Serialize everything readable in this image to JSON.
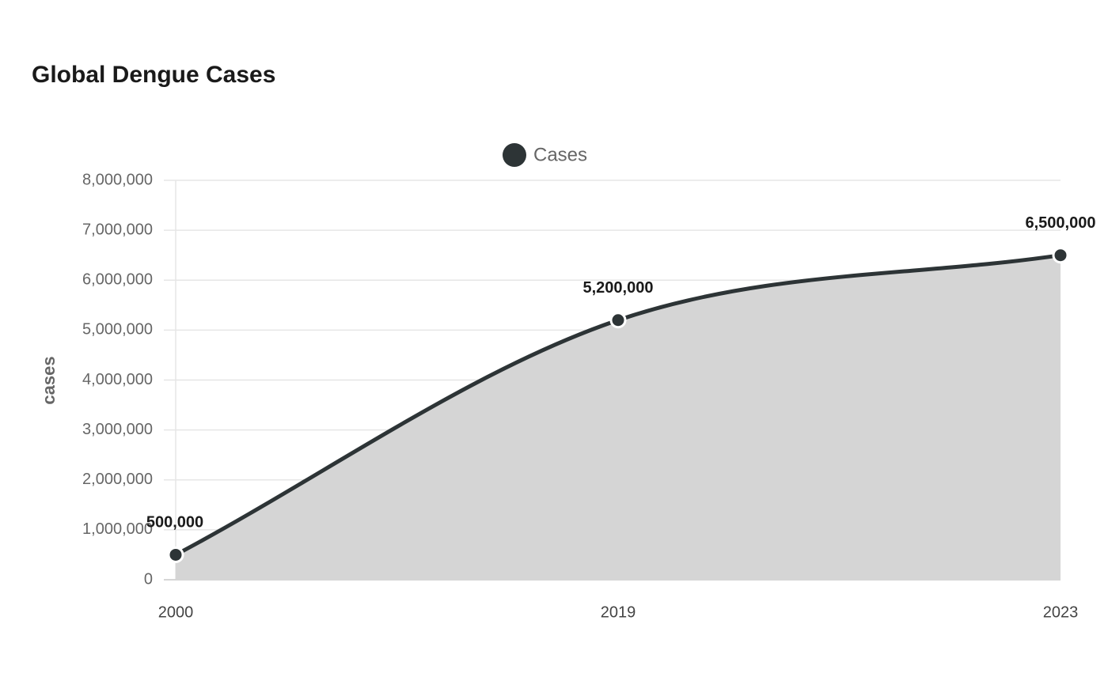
{
  "chart_data": {
    "type": "area",
    "title": "Global Dengue Cases",
    "categories": [
      "2000",
      "2019",
      "2023"
    ],
    "series": [
      {
        "name": "Cases",
        "color": "#2d3436",
        "fill": "#d5d5d5",
        "values": [
          500000,
          5200000,
          6500000
        ],
        "value_labels": [
          "500,000",
          "5,200,000",
          "6,500,000"
        ]
      }
    ],
    "y_label": "cases",
    "ylim": [
      0,
      8000000
    ],
    "yticks": [
      0,
      {
        "value": 1000000,
        "label": "1,000,000"
      },
      {
        "value": 2000000,
        "label": "2,000,000"
      },
      {
        "value": 3000000,
        "label": "3,000,000"
      },
      {
        "value": 4000000,
        "label": "4,000,000"
      },
      {
        "value": 5000000,
        "label": "5,000,000"
      },
      {
        "value": 6000000,
        "label": "6,000,000"
      },
      {
        "value": 7000000,
        "label": "7,000,000"
      },
      {
        "value": 8000000,
        "label": "8,000,000"
      }
    ],
    "grid": true,
    "legend": "top"
  }
}
